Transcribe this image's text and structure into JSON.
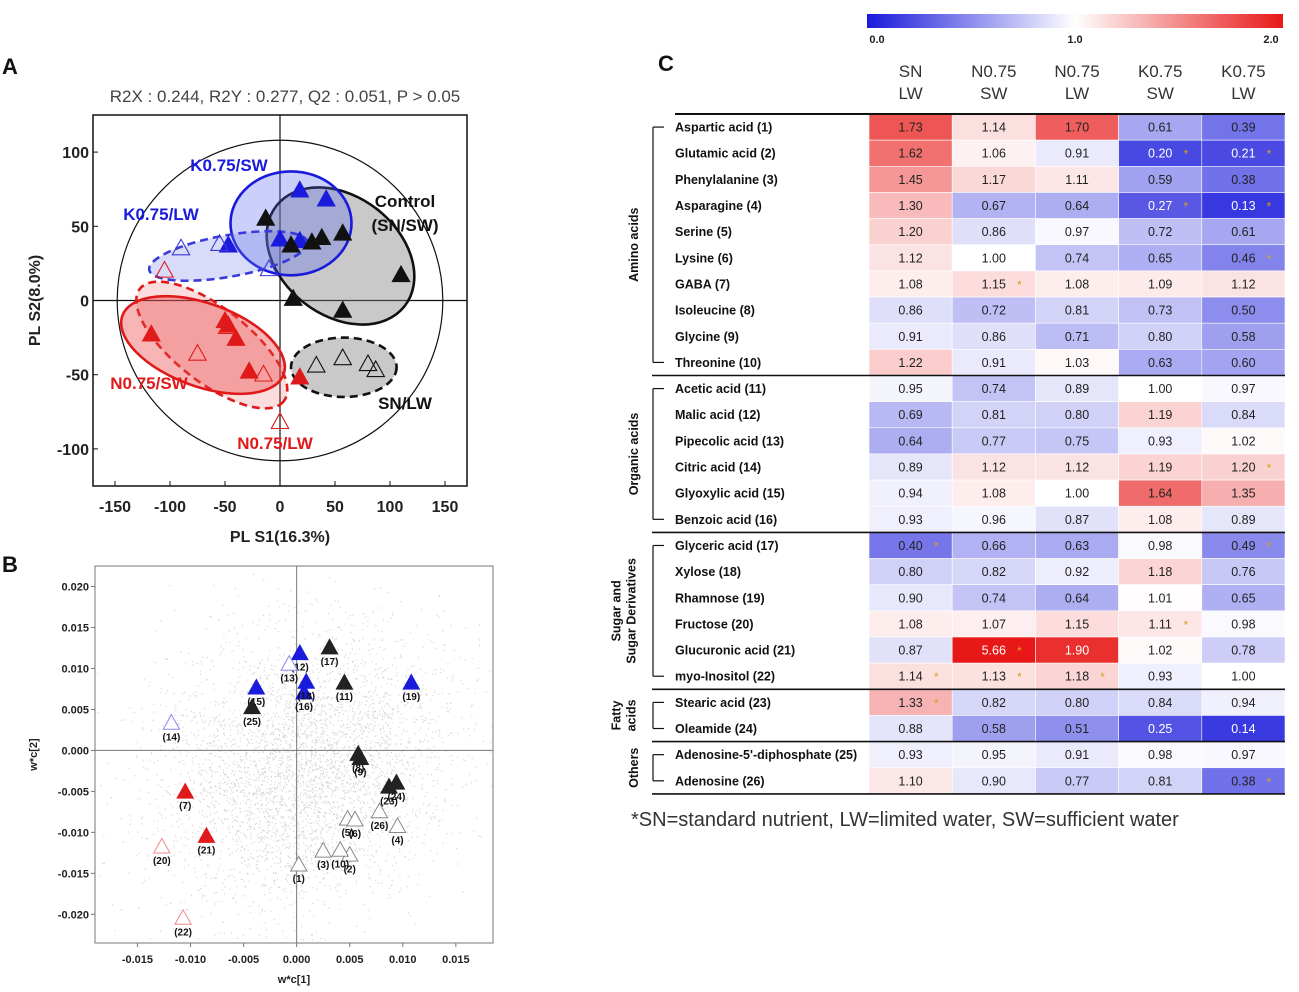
{
  "panel_labels": {
    "a": "A",
    "b": "B",
    "c": "C"
  },
  "chart_data": [
    {
      "type": "scatter",
      "panel": "A",
      "title": "R2X : 0.244, R2Y : 0.277, Q2 : 0.051, P  > 0.05",
      "xlabel": "PL S1(16.3%)",
      "ylabel": "PL S2(8.0%)",
      "xlim": [
        -170,
        170
      ],
      "ylim": [
        -125,
        125
      ],
      "xticks": [
        -150,
        -100,
        -50,
        0,
        50,
        100,
        150
      ],
      "yticks": [
        100,
        50,
        0,
        -50,
        -100
      ],
      "groups": [
        {
          "name": "K0.75/SW",
          "color": "#1a1adc",
          "filled": true,
          "points": [
            [
              18,
              74
            ],
            [
              42,
              68
            ],
            [
              0,
              41
            ],
            [
              -47,
              37
            ],
            [
              18,
              40
            ]
          ],
          "ellipse": {
            "cx": 10,
            "cy": 52,
            "rx": 55,
            "ry": 35,
            "angle": 0,
            "dashed": false
          }
        },
        {
          "name": "K0.75/LW",
          "color": "#3a3ad8",
          "filled": false,
          "points": [
            [
              -90,
              35
            ],
            [
              -55,
              38
            ],
            [
              -10,
              21
            ]
          ],
          "ellipse": {
            "cx": -47,
            "cy": 30,
            "rx": 73,
            "ry": 14,
            "angle": 10,
            "dashed": true
          }
        },
        {
          "name": "Control (SN/SW)",
          "color": "#111111",
          "filled": true,
          "points": [
            [
              -13,
              55
            ],
            [
              10,
              37
            ],
            [
              29,
              39
            ],
            [
              38,
              42
            ],
            [
              57,
              45
            ],
            [
              110,
              17
            ],
            [
              12,
              1
            ],
            [
              57,
              -7
            ]
          ],
          "ellipse": {
            "cx": 55,
            "cy": 30,
            "rx": 74,
            "ry": 40,
            "angle": -38,
            "dashed": false
          },
          "display_label": [
            "Control",
            "(SN/SW)"
          ]
        },
        {
          "name": "SN/LW",
          "color": "#111111",
          "filled": false,
          "points": [
            [
              33,
              -44
            ],
            [
              57,
              -39
            ],
            [
              80,
              -43
            ],
            [
              87,
              -47
            ]
          ],
          "ellipse": {
            "cx": 58,
            "cy": -45,
            "rx": 48,
            "ry": 20,
            "angle": 0,
            "dashed": true
          }
        },
        {
          "name": "N0.75/SW",
          "color": "#e01a1a",
          "filled": true,
          "points": [
            [
              -117,
              -23
            ],
            [
              -50,
              -14
            ],
            [
              -40,
              -26
            ],
            [
              -28,
              -48
            ],
            [
              18,
              -52
            ],
            [
              -47,
              -17
            ]
          ],
          "ellipse": {
            "cx": -70,
            "cy": -30,
            "rx": 78,
            "ry": 28,
            "angle": -20,
            "dashed": false
          }
        },
        {
          "name": "N0.75/LW",
          "color": "#e01a1a",
          "filled": false,
          "points": [
            [
              -105,
              20
            ],
            [
              -75,
              -36
            ],
            [
              -15,
              -50
            ],
            [
              0,
              -82
            ],
            [
              -48,
              -18
            ]
          ],
          "ellipse": {
            "cx": -62,
            "cy": -30,
            "rx": 83,
            "ry": 25,
            "angle": -38,
            "dashed": true
          }
        }
      ],
      "annotations": [
        {
          "text": "K0.75/SW",
          "color": "#1a1adc"
        },
        {
          "text": "K0.75/LW",
          "color": "#1a1adc"
        },
        {
          "text": "Control",
          "color": "#111111"
        },
        {
          "text": "(SN/SW)",
          "color": "#111111"
        },
        {
          "text": "SN/LW",
          "color": "#111111"
        },
        {
          "text": "N0.75/SW",
          "color": "#e01a1a"
        },
        {
          "text": "N0.75/LW",
          "color": "#e01a1a"
        }
      ]
    },
    {
      "type": "scatter",
      "panel": "B",
      "xlabel": "w*c[1]",
      "ylabel": "w*c[2]",
      "xlim": [
        -0.019,
        0.0185
      ],
      "ylim": [
        -0.0235,
        0.0225
      ],
      "xticks": [
        "-0.015",
        "-0.010",
        "-0.005",
        "0.000",
        "0.005",
        "0.010",
        "0.015"
      ],
      "xtick_values": [
        -0.015,
        -0.01,
        -0.005,
        0,
        0.005,
        0.01,
        0.015
      ],
      "yticks": [
        "0.020",
        "0.015",
        "0.010",
        "0.005",
        "0.000",
        "-0.005",
        "-0.010",
        "-0.015",
        "-0.020"
      ],
      "ytick_values": [
        0.02,
        0.015,
        0.01,
        0.005,
        0,
        -0.005,
        -0.01,
        -0.015,
        -0.02
      ],
      "points": [
        {
          "id": "(1)",
          "x": 0.0002,
          "y": -0.014,
          "color": "#888888",
          "filled": false
        },
        {
          "id": "(2)",
          "x": 0.005,
          "y": -0.0128,
          "color": "#888888",
          "filled": false
        },
        {
          "id": "(3)",
          "x": 0.0025,
          "y": -0.0123,
          "color": "#888888",
          "filled": false
        },
        {
          "id": "(4)",
          "x": 0.0095,
          "y": -0.0093,
          "color": "#888888",
          "filled": false
        },
        {
          "id": "(5)",
          "x": 0.0048,
          "y": -0.0084,
          "color": "#888888",
          "filled": false
        },
        {
          "id": "(6)",
          "x": 0.0055,
          "y": -0.0085,
          "color": "#888888",
          "filled": false
        },
        {
          "id": "(7)",
          "x": -0.0105,
          "y": -0.0051,
          "color": "#e01a1a",
          "filled": true
        },
        {
          "id": "(8)",
          "x": 0.0058,
          "y": -0.0005,
          "color": "#222222",
          "filled": true
        },
        {
          "id": "(9)",
          "x": 0.006,
          "y": -0.001,
          "color": "#222222",
          "filled": true
        },
        {
          "id": "(10)",
          "x": 0.0041,
          "y": -0.0122,
          "color": "#888888",
          "filled": false
        },
        {
          "id": "(11)",
          "x": 0.0045,
          "y": 0.0082,
          "color": "#222222",
          "filled": true
        },
        {
          "id": "(12)",
          "x": 0.0003,
          "y": 0.0118,
          "color": "#1a1adc",
          "filled": true
        },
        {
          "id": "(13)",
          "x": -0.0007,
          "y": 0.0105,
          "color": "#8a8af0",
          "filled": false
        },
        {
          "id": "(14)",
          "x": -0.0118,
          "y": 0.0033,
          "color": "#8a8af0",
          "filled": false
        },
        {
          "id": "(15)",
          "x": -0.0038,
          "y": 0.0076,
          "color": "#1a1adc",
          "filled": true
        },
        {
          "id": "(16)",
          "x": 0.0007,
          "y": 0.007,
          "color": "#1a1adc",
          "filled": true
        },
        {
          "id": "(17)",
          "x": 0.0031,
          "y": 0.0125,
          "color": "#222222",
          "filled": true
        },
        {
          "id": "(18)",
          "x": 0.0009,
          "y": 0.0083,
          "color": "#1a1adc",
          "filled": true
        },
        {
          "id": "(19)",
          "x": 0.0108,
          "y": 0.0082,
          "color": "#1a1adc",
          "filled": true
        },
        {
          "id": "(20)",
          "x": -0.0127,
          "y": -0.0118,
          "color": "#f08a8a",
          "filled": false
        },
        {
          "id": "(21)",
          "x": -0.0085,
          "y": -0.0105,
          "color": "#e01a1a",
          "filled": true
        },
        {
          "id": "(22)",
          "x": -0.0107,
          "y": -0.0205,
          "color": "#f08a8a",
          "filled": false
        },
        {
          "id": "(23)",
          "x": 0.0087,
          "y": -0.0045,
          "color": "#222222",
          "filled": true
        },
        {
          "id": "(24)",
          "x": 0.0094,
          "y": -0.004,
          "color": "#222222",
          "filled": true
        },
        {
          "id": "(25)",
          "x": -0.0042,
          "y": 0.0052,
          "color": "#222222",
          "filled": true
        },
        {
          "id": "(26)",
          "x": 0.0078,
          "y": -0.0075,
          "color": "#888888",
          "filled": false
        }
      ]
    },
    {
      "type": "heatmap",
      "panel": "C",
      "colorbar": {
        "min": 0.0,
        "mid": 1.0,
        "max": 2.0,
        "ticks": [
          "0.0",
          "1.0",
          "2.0"
        ],
        "low_color": "#1a1adc",
        "mid_color": "#ffffff",
        "high_color": "#e81818"
      },
      "columns": [
        [
          "SN",
          "LW"
        ],
        [
          "N0.75",
          "SW"
        ],
        [
          "N0.75",
          "LW"
        ],
        [
          "K0.75",
          "SW"
        ],
        [
          "K0.75",
          "LW"
        ]
      ],
      "groups": [
        {
          "label": [
            "Amino acids"
          ],
          "rows": [
            0,
            9
          ]
        },
        {
          "label": [
            "Organic acids"
          ],
          "rows": [
            10,
            15
          ]
        },
        {
          "label": [
            "Sugar and",
            "Sugar Derivatives"
          ],
          "rows": [
            16,
            21
          ]
        },
        {
          "label": [
            "Fatty",
            "acids"
          ],
          "rows": [
            22,
            23
          ]
        },
        {
          "label": [
            "Others"
          ],
          "rows": [
            24,
            25
          ]
        }
      ],
      "rows": [
        {
          "name": "Aspartic acid (1)",
          "values": [
            "1.73",
            "1.14",
            "1.70",
            "0.61",
            "0.39"
          ],
          "sig": [
            false,
            false,
            false,
            false,
            false
          ]
        },
        {
          "name": "Glutamic acid (2)",
          "values": [
            "1.62",
            "1.06",
            "0.91",
            "0.20",
            "0.21"
          ],
          "sig": [
            false,
            false,
            false,
            true,
            true
          ]
        },
        {
          "name": "Phenylalanine (3)",
          "values": [
            "1.45",
            "1.17",
            "1.11",
            "0.59",
            "0.38"
          ],
          "sig": [
            false,
            false,
            false,
            false,
            false
          ]
        },
        {
          "name": "Asparagine (4)",
          "values": [
            "1.30",
            "0.67",
            "0.64",
            "0.27",
            "0.13"
          ],
          "sig": [
            false,
            false,
            false,
            true,
            true
          ]
        },
        {
          "name": "Serine (5)",
          "values": [
            "1.20",
            "0.86",
            "0.97",
            "0.72",
            "0.61"
          ],
          "sig": [
            false,
            false,
            false,
            false,
            false
          ]
        },
        {
          "name": "Lysine (6)",
          "values": [
            "1.12",
            "1.00",
            "0.74",
            "0.65",
            "0.46"
          ],
          "sig": [
            false,
            false,
            false,
            false,
            true
          ]
        },
        {
          "name": "GABA (7)",
          "values": [
            "1.08",
            "1.15",
            "1.08",
            "1.09",
            "1.12"
          ],
          "sig": [
            false,
            true,
            false,
            false,
            false
          ]
        },
        {
          "name": "Isoleucine (8)",
          "values": [
            "0.86",
            "0.72",
            "0.81",
            "0.73",
            "0.50"
          ],
          "sig": [
            false,
            false,
            false,
            false,
            false
          ]
        },
        {
          "name": "Glycine (9)",
          "values": [
            "0.91",
            "0.86",
            "0.71",
            "0.80",
            "0.58"
          ],
          "sig": [
            false,
            false,
            false,
            false,
            false
          ]
        },
        {
          "name": "Threonine (10)",
          "values": [
            "1.22",
            "0.91",
            "1.03",
            "0.63",
            "0.60"
          ],
          "sig": [
            false,
            false,
            false,
            false,
            false
          ]
        },
        {
          "name": "Acetic acid (11)",
          "values": [
            "0.95",
            "0.74",
            "0.89",
            "1.00",
            "0.97"
          ],
          "sig": [
            false,
            false,
            false,
            false,
            false
          ]
        },
        {
          "name": "Malic acid (12)",
          "values": [
            "0.69",
            "0.81",
            "0.80",
            "1.19",
            "0.84"
          ],
          "sig": [
            false,
            false,
            false,
            false,
            false
          ]
        },
        {
          "name": "Pipecolic acid (13)",
          "values": [
            "0.64",
            "0.77",
            "0.75",
            "0.93",
            "1.02"
          ],
          "sig": [
            false,
            false,
            false,
            false,
            false
          ]
        },
        {
          "name": "Citric acid (14)",
          "values": [
            "0.89",
            "1.12",
            "1.12",
            "1.19",
            "1.20"
          ],
          "sig": [
            false,
            false,
            false,
            false,
            true
          ]
        },
        {
          "name": "Glyoxylic acid (15)",
          "values": [
            "0.94",
            "1.08",
            "1.00",
            "1.64",
            "1.35"
          ],
          "sig": [
            false,
            false,
            false,
            false,
            false
          ]
        },
        {
          "name": "Benzoic acid (16)",
          "values": [
            "0.93",
            "0.96",
            "0.87",
            "1.08",
            "0.89"
          ],
          "sig": [
            false,
            false,
            false,
            false,
            false
          ]
        },
        {
          "name": "Glyceric acid (17)",
          "values": [
            "0.40",
            "0.66",
            "0.63",
            "0.98",
            "0.49"
          ],
          "sig": [
            true,
            false,
            false,
            false,
            true
          ]
        },
        {
          "name": "Xylose (18)",
          "values": [
            "0.80",
            "0.82",
            "0.92",
            "1.18",
            "0.76"
          ],
          "sig": [
            false,
            false,
            false,
            false,
            false
          ]
        },
        {
          "name": "Rhamnose (19)",
          "values": [
            "0.90",
            "0.74",
            "0.64",
            "1.01",
            "0.65"
          ],
          "sig": [
            false,
            false,
            false,
            false,
            false
          ]
        },
        {
          "name": "Fructose (20)",
          "values": [
            "1.08",
            "1.07",
            "1.15",
            "1.11",
            "0.98"
          ],
          "sig": [
            false,
            false,
            false,
            true,
            false
          ]
        },
        {
          "name": "Glucuronic acid (21)",
          "values": [
            "0.87",
            "5.66",
            "1.90",
            "1.02",
            "0.78"
          ],
          "sig": [
            false,
            true,
            false,
            false,
            false
          ]
        },
        {
          "name": "myo-Inositol (22)",
          "values": [
            "1.14",
            "1.13",
            "1.18",
            "0.93",
            "1.00"
          ],
          "sig": [
            true,
            true,
            true,
            false,
            false
          ]
        },
        {
          "name": "Stearic acid (23)",
          "values": [
            "1.33",
            "0.82",
            "0.80",
            "0.84",
            "0.94"
          ],
          "sig": [
            true,
            false,
            false,
            false,
            false
          ]
        },
        {
          "name": "Oleamide (24)",
          "values": [
            "0.88",
            "0.58",
            "0.51",
            "0.25",
            "0.14"
          ],
          "sig": [
            false,
            false,
            false,
            false,
            false
          ]
        },
        {
          "name": "Adenosine-5'-diphosphate (25)",
          "values": [
            "0.93",
            "0.95",
            "0.91",
            "0.98",
            "0.97"
          ],
          "sig": [
            false,
            false,
            false,
            false,
            false
          ]
        },
        {
          "name": "Adenosine (26)",
          "values": [
            "1.10",
            "0.90",
            "0.77",
            "0.81",
            "0.38"
          ],
          "sig": [
            false,
            false,
            false,
            false,
            true
          ]
        }
      ],
      "footnote": "*SN=standard nutrient, LW=limited water, SW=sufficient water"
    }
  ]
}
